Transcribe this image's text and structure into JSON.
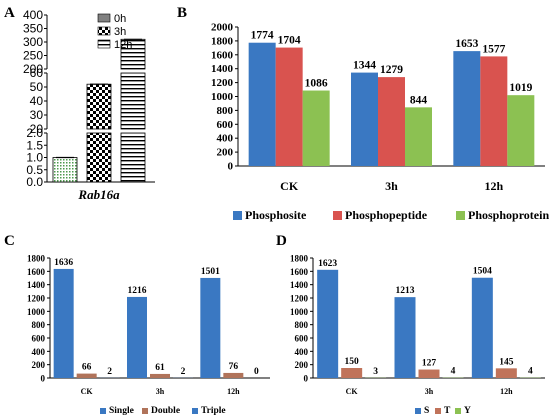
{
  "chart_data": [
    {
      "panel": "A",
      "type": "bar",
      "categories": [
        "Rab16a"
      ],
      "series": [
        {
          "name": "0h",
          "values": [
            1.0
          ]
        },
        {
          "name": "3h",
          "values": [
            52
          ]
        },
        {
          "name": "12h",
          "values": [
            310
          ]
        }
      ],
      "yticks_low": [
        "0.0",
        "0.5",
        "1.0",
        "1.5",
        "2.0"
      ],
      "yticks_mid": [
        "20",
        "30",
        "40",
        "50",
        "60"
      ],
      "yticks_high": [
        "200",
        "250",
        "300",
        "350",
        "400"
      ],
      "axis_breaks": true,
      "legend_position": "top-right",
      "colors": {
        "0h": "#808080",
        "3h": "checker",
        "12h": "stripes"
      }
    },
    {
      "panel": "B",
      "type": "bar",
      "categories": [
        "CK",
        "3h",
        "12h"
      ],
      "series": [
        {
          "name": "Phosphosite",
          "values": [
            1774,
            1344,
            1653
          ]
        },
        {
          "name": "Phosphopeptide",
          "values": [
            1704,
            1279,
            1577
          ]
        },
        {
          "name": "Phosphoprotein",
          "values": [
            1086,
            844,
            1019
          ]
        }
      ],
      "ylim": [
        0,
        2000
      ],
      "yticks": [
        "0",
        "200",
        "400",
        "600",
        "800",
        "1000",
        "1200",
        "1400",
        "1600",
        "1800",
        "2000"
      ],
      "legend_position": "bottom",
      "colors": [
        "#3a78c2",
        "#d9534f",
        "#8cc152"
      ]
    },
    {
      "panel": "C",
      "type": "bar",
      "categories": [
        "CK",
        "3h",
        "12h"
      ],
      "series": [
        {
          "name": "Single",
          "values": [
            1636,
            1216,
            1501
          ]
        },
        {
          "name": "Double",
          "values": [
            66,
            61,
            76
          ]
        },
        {
          "name": "Triple",
          "values": [
            2,
            2,
            0
          ]
        }
      ],
      "ylim": [
        0,
        1800
      ],
      "yticks": [
        "0",
        "200",
        "400",
        "600",
        "800",
        "1000",
        "1200",
        "1400",
        "1600",
        "1800"
      ],
      "legend_position": "bottom",
      "colors": [
        "#3a78c2",
        "#c0735a",
        "#3a78c2"
      ]
    },
    {
      "panel": "D",
      "type": "bar",
      "categories": [
        "CK",
        "3h",
        "12h"
      ],
      "series": [
        {
          "name": "S",
          "values": [
            1623,
            1213,
            1504
          ]
        },
        {
          "name": "T",
          "values": [
            150,
            127,
            145
          ]
        },
        {
          "name": "Y",
          "values": [
            3,
            4,
            4
          ]
        }
      ],
      "ylim": [
        0,
        1800
      ],
      "yticks": [
        "0",
        "200",
        "400",
        "600",
        "800",
        "1000",
        "1200",
        "1400",
        "1600",
        "1800"
      ],
      "legend_position": "bottom",
      "colors": [
        "#3a78c2",
        "#c0735a",
        "#8cc152"
      ]
    }
  ]
}
